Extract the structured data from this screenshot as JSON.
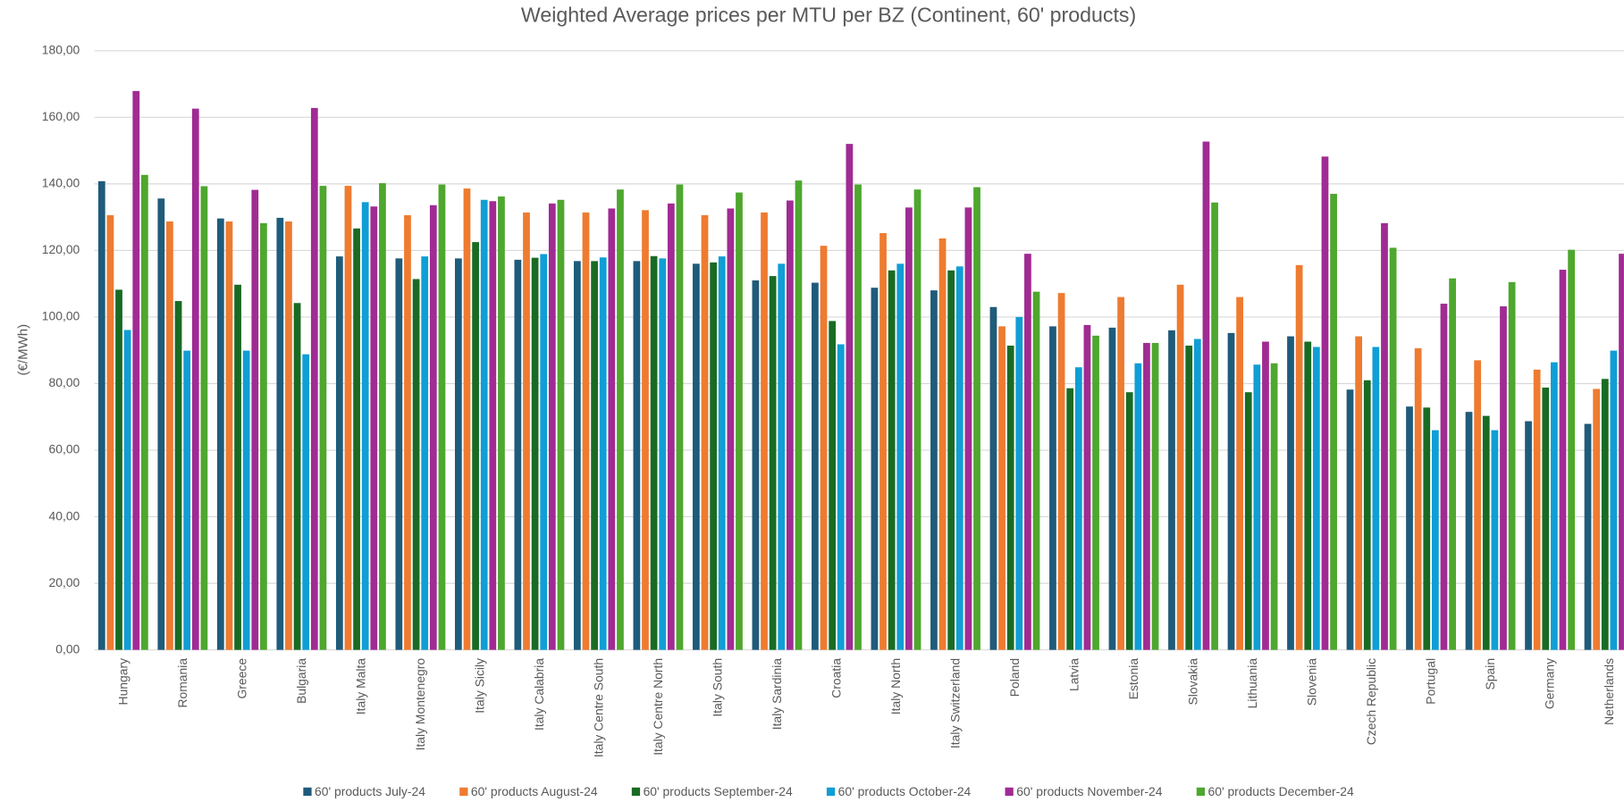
{
  "chart_data": {
    "type": "bar",
    "title": "Weighted Average prices per MTU per BZ (Continent, 60' products)",
    "y_label": "(€/MWh)",
    "categories": [
      "Hungary",
      "Romania",
      "Greece",
      "Bulgaria",
      "Italy Malta",
      "Italy Montenegro",
      "Italy Sicily",
      "Italy Calabria",
      "Italy Centre South",
      "Italy Centre North",
      "Italy South",
      "Italy Sardinia",
      "Croatia",
      "Italy North",
      "Italy Switzerland",
      "Poland",
      "Latvia",
      "Estonia",
      "Slovakia",
      "Lithuania",
      "Slovenia",
      "Czech Republic",
      "Portugal",
      "Spain",
      "Germany",
      "Netherlands"
    ],
    "series": [
      {
        "name": "60' products July-24",
        "color": "#1f5b7a",
        "values": [
          140.8,
          135.6,
          129.6,
          129.8,
          118.2,
          117.6,
          117.6,
          117.2,
          116.8,
          116.8,
          116.0,
          111.0,
          110.3,
          108.8,
          108.0,
          103.0,
          97.2,
          96.8,
          96.0,
          95.2,
          94.2,
          78.2,
          73.1,
          71.5,
          68.7,
          67.9
        ]
      },
      {
        "name": "60' products August-24",
        "color": "#ee7b30",
        "values": [
          130.6,
          128.7,
          128.7,
          128.7,
          139.4,
          130.6,
          138.6,
          131.4,
          131.4,
          132.1,
          130.6,
          131.4,
          121.4,
          125.2,
          123.6,
          97.2,
          107.2,
          106.0,
          109.7,
          106.0,
          115.6,
          94.2,
          90.6,
          87.0,
          84.2,
          78.4
        ]
      },
      {
        "name": "60' products September-24",
        "color": "#196b24",
        "values": [
          108.2,
          104.8,
          109.7,
          104.2,
          126.6,
          111.4,
          122.5,
          117.8,
          116.8,
          118.3,
          116.4,
          112.3,
          98.8,
          114.0,
          114.0,
          91.4,
          78.6,
          77.4,
          91.4,
          77.4,
          92.6,
          81.0,
          72.8,
          70.3,
          78.8,
          81.4
        ]
      },
      {
        "name": "60' products October-24",
        "color": "#0f9ed5",
        "values": [
          96.1,
          89.9,
          89.9,
          88.8,
          134.5,
          118.2,
          135.2,
          118.9,
          117.9,
          117.6,
          118.2,
          116.0,
          91.8,
          116.0,
          115.2,
          100.0,
          84.9,
          86.1,
          93.4,
          85.7,
          91.0,
          91.0,
          66.0,
          66.0,
          86.4,
          89.9
        ]
      },
      {
        "name": "60' products November-24",
        "color": "#a02b93",
        "values": [
          167.9,
          162.6,
          138.2,
          162.8,
          133.2,
          133.6,
          134.8,
          134.1,
          132.6,
          134.1,
          132.6,
          135.0,
          152.0,
          132.9,
          132.9,
          119.0,
          97.6,
          92.2,
          152.7,
          92.6,
          148.2,
          128.2,
          104.0,
          103.2,
          114.2,
          119.0
        ]
      },
      {
        "name": "60' products December-24",
        "color": "#4ea72e",
        "values": [
          142.7,
          139.3,
          128.2,
          139.4,
          140.2,
          139.8,
          136.2,
          135.2,
          138.3,
          139.8,
          137.4,
          141.0,
          139.8,
          138.3,
          139.0,
          107.6,
          94.4,
          92.2,
          134.4,
          86.1,
          137.0,
          120.8,
          111.6,
          110.5,
          120.2,
          null
        ]
      }
    ],
    "ylim": [
      0,
      180
    ],
    "yticks": [
      {
        "value": 0,
        "label": "0,00"
      },
      {
        "value": 20,
        "label": "20,00"
      },
      {
        "value": 40,
        "label": "40,00"
      },
      {
        "value": 60,
        "label": "60,00"
      },
      {
        "value": 80,
        "label": "80,00"
      },
      {
        "value": 100,
        "label": "100,00"
      },
      {
        "value": 120,
        "label": "120,00"
      },
      {
        "value": 140,
        "label": "140,00"
      },
      {
        "value": 160,
        "label": "160,00"
      },
      {
        "value": 180,
        "label": "180,00"
      }
    ],
    "grid": true,
    "legend": "bottom"
  }
}
